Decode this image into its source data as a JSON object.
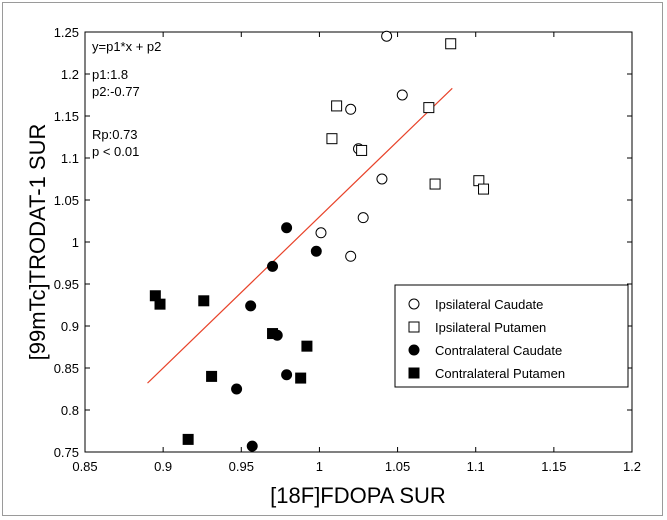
{
  "chart_data": {
    "type": "scatter",
    "xlabel": "[18F]FDOPA SUR",
    "ylabel": "[99mTc]TRODAT-1 SUR",
    "xlim": [
      0.85,
      1.2
    ],
    "ylim": [
      0.75,
      1.25
    ],
    "xticks": [
      "0.85",
      "0.9",
      "0.95",
      "1",
      "1.05",
      "1.1",
      "1.15",
      "1.2"
    ],
    "yticks": [
      "0.75",
      "0.8",
      "0.85",
      "0.9",
      "0.95",
      "1",
      "1.05",
      "1.1",
      "1.15",
      "1.2",
      "1.25"
    ],
    "grid": false,
    "legend_position": "bottom-right",
    "annotations": [
      "y=p1*x + p2",
      "p1:1.8",
      "p2:-0.77",
      "Rp:0.73",
      "p < 0.01"
    ],
    "fit_line": {
      "slope": 1.8,
      "intercept": -0.77,
      "x_range": [
        0.89,
        1.085
      ],
      "color": "#e8432a"
    },
    "series": [
      {
        "name": "Ipsilateral Caudate",
        "marker": "circle-open",
        "x": [
          1.043,
          1.053,
          1.02,
          1.025,
          1.04,
          1.028,
          1.001,
          1.02
        ],
        "y": [
          1.245,
          1.175,
          1.158,
          1.111,
          1.075,
          1.029,
          1.011,
          0.983
        ]
      },
      {
        "name": "Ipsilateral Putamen",
        "marker": "square-open",
        "x": [
          1.084,
          1.011,
          1.07,
          1.008,
          1.027,
          1.074,
          1.102,
          1.105
        ],
        "y": [
          1.236,
          1.162,
          1.16,
          1.123,
          1.109,
          1.069,
          1.073,
          1.063
        ]
      },
      {
        "name": "Contralateral Caudate",
        "marker": "circle-filled",
        "x": [
          0.979,
          0.998,
          0.97,
          0.956,
          0.973,
          0.979,
          0.947,
          0.957
        ],
        "y": [
          1.017,
          0.989,
          0.971,
          0.924,
          0.889,
          0.842,
          0.825,
          0.757
        ]
      },
      {
        "name": "Contralateral Putamen",
        "marker": "square-filled",
        "x": [
          0.895,
          0.898,
          0.926,
          0.97,
          0.992,
          0.931,
          0.988,
          0.916
        ],
        "y": [
          0.936,
          0.926,
          0.93,
          0.891,
          0.876,
          0.84,
          0.838,
          0.765
        ]
      }
    ]
  }
}
